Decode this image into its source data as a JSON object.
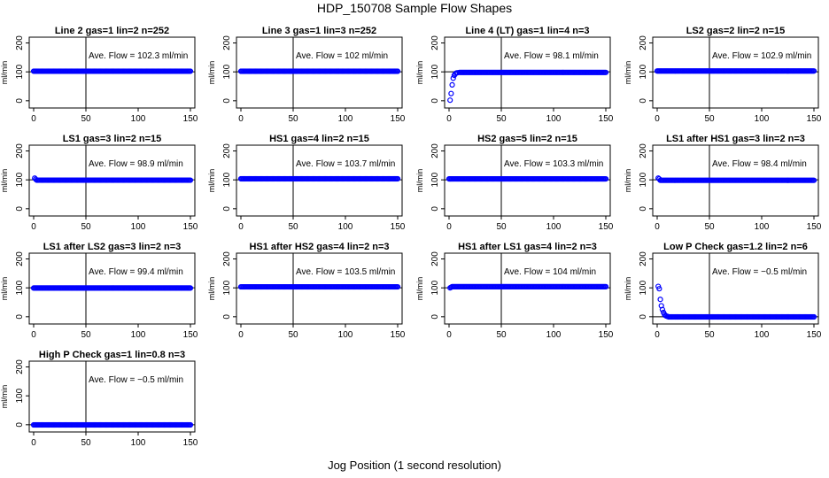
{
  "page": {
    "title": "HDP_150708  Sample Flow Shapes",
    "xlabel": "Jog Position (1 second resolution)"
  },
  "chart_data": [
    {
      "type": "scatter",
      "title": "Line 2 gas=1 lin=2 n=252",
      "annotation": "Ave. Flow = 102.3  ml/min",
      "ylabel": "ml/min",
      "xlim": [
        0,
        150
      ],
      "ylim": [
        -25,
        220
      ],
      "xticks": [
        0,
        50,
        100,
        150
      ],
      "yticks": [
        0,
        100,
        200
      ],
      "vline": 50,
      "hline": 100,
      "point_color": "#0000ff",
      "shape": "flat",
      "level": 102.3
    },
    {
      "type": "scatter",
      "title": "Line 3 gas=1 lin=3 n=252",
      "annotation": "Ave. Flow = 102  ml/min",
      "ylabel": "ml/min",
      "xlim": [
        0,
        150
      ],
      "ylim": [
        -25,
        220
      ],
      "xticks": [
        0,
        50,
        100,
        150
      ],
      "yticks": [
        0,
        100,
        200
      ],
      "vline": 50,
      "hline": 100,
      "point_color": "#0000ff",
      "shape": "flat",
      "level": 102
    },
    {
      "type": "scatter",
      "title": "Line 4 (LT) gas=1 lin=4 n=3",
      "annotation": "Ave. Flow = 98.1  ml/min",
      "ylabel": "ml/min",
      "xlim": [
        0,
        150
      ],
      "ylim": [
        -25,
        220
      ],
      "xticks": [
        0,
        50,
        100,
        150
      ],
      "yticks": [
        0,
        100,
        200
      ],
      "vline": 50,
      "hline": 100,
      "point_color": "#0000ff",
      "shape": "rise",
      "level": 98.1,
      "initial_points": [
        [
          1,
          2
        ],
        [
          2,
          25
        ],
        [
          3,
          55
        ],
        [
          4,
          78
        ],
        [
          5,
          88
        ],
        [
          6,
          93
        ],
        [
          7,
          96
        ],
        [
          8,
          97
        ],
        [
          10,
          98
        ]
      ]
    },
    {
      "type": "scatter",
      "title": "LS2 gas=2 lin=2 n=15",
      "annotation": "Ave. Flow = 102.9  ml/min",
      "ylabel": "ml/min",
      "xlim": [
        0,
        150
      ],
      "ylim": [
        -25,
        220
      ],
      "xticks": [
        0,
        50,
        100,
        150
      ],
      "yticks": [
        0,
        100,
        200
      ],
      "vline": 50,
      "hline": 100,
      "point_color": "#0000ff",
      "shape": "flat",
      "level": 102.9
    },
    {
      "type": "scatter",
      "title": "LS1 gas=3 lin=2 n=15",
      "annotation": "Ave. Flow = 98.9  ml/min",
      "ylabel": "ml/min",
      "xlim": [
        0,
        150
      ],
      "ylim": [
        -25,
        220
      ],
      "xticks": [
        0,
        50,
        100,
        150
      ],
      "yticks": [
        0,
        100,
        200
      ],
      "vline": 50,
      "hline": 100,
      "point_color": "#0000ff",
      "shape": "flat",
      "level": 98.9,
      "initial_points": [
        [
          1,
          106
        ],
        [
          2,
          102
        ]
      ]
    },
    {
      "type": "scatter",
      "title": "HS1 gas=4 lin=2 n=15",
      "annotation": "Ave. Flow = 103.7  ml/min",
      "ylabel": "ml/min",
      "xlim": [
        0,
        150
      ],
      "ylim": [
        -25,
        220
      ],
      "xticks": [
        0,
        50,
        100,
        150
      ],
      "yticks": [
        0,
        100,
        200
      ],
      "vline": 50,
      "hline": 100,
      "point_color": "#0000ff",
      "shape": "flat",
      "level": 103.7
    },
    {
      "type": "scatter",
      "title": "HS2 gas=5 lin=2 n=15",
      "annotation": "Ave. Flow = 103.3  ml/min",
      "ylabel": "ml/min",
      "xlim": [
        0,
        150
      ],
      "ylim": [
        -25,
        220
      ],
      "xticks": [
        0,
        50,
        100,
        150
      ],
      "yticks": [
        0,
        100,
        200
      ],
      "vline": 50,
      "hline": 100,
      "point_color": "#0000ff",
      "shape": "flat",
      "level": 103.3
    },
    {
      "type": "scatter",
      "title": "LS1 after HS1 gas=3 lin=2 n=3",
      "annotation": "Ave. Flow = 98.4  ml/min",
      "ylabel": "ml/min",
      "xlim": [
        0,
        150
      ],
      "ylim": [
        -25,
        220
      ],
      "xticks": [
        0,
        50,
        100,
        150
      ],
      "yticks": [
        0,
        100,
        200
      ],
      "vline": 50,
      "hline": 100,
      "point_color": "#0000ff",
      "shape": "flat",
      "level": 98.4,
      "initial_points": [
        [
          1,
          106
        ],
        [
          2,
          103
        ]
      ]
    },
    {
      "type": "scatter",
      "title": "LS1 after LS2 gas=3 lin=2 n=3",
      "annotation": "Ave. Flow = 99.4  ml/min",
      "ylabel": "ml/min",
      "xlim": [
        0,
        150
      ],
      "ylim": [
        -25,
        220
      ],
      "xticks": [
        0,
        50,
        100,
        150
      ],
      "yticks": [
        0,
        100,
        200
      ],
      "vline": 50,
      "hline": 100,
      "point_color": "#0000ff",
      "shape": "flat",
      "level": 99.4
    },
    {
      "type": "scatter",
      "title": "HS1 after HS2 gas=4 lin=2 n=3",
      "annotation": "Ave. Flow = 103.5  ml/min",
      "ylabel": "ml/min",
      "xlim": [
        0,
        150
      ],
      "ylim": [
        -25,
        220
      ],
      "xticks": [
        0,
        50,
        100,
        150
      ],
      "yticks": [
        0,
        100,
        200
      ],
      "vline": 50,
      "hline": 100,
      "point_color": "#0000ff",
      "shape": "flat",
      "level": 103.5
    },
    {
      "type": "scatter",
      "title": "HS1 after LS1 gas=4 lin=2 n=3",
      "annotation": "Ave. Flow = 104  ml/min",
      "ylabel": "ml/min",
      "xlim": [
        0,
        150
      ],
      "ylim": [
        -25,
        220
      ],
      "xticks": [
        0,
        50,
        100,
        150
      ],
      "yticks": [
        0,
        100,
        200
      ],
      "vline": 50,
      "hline": 100,
      "point_color": "#0000ff",
      "shape": "flat",
      "level": 104,
      "initial_points": [
        [
          1,
          100
        ],
        [
          2,
          102
        ]
      ]
    },
    {
      "type": "scatter",
      "title": "Low P Check gas=1.2 lin=2 n=6",
      "annotation": "Ave. Flow = −0.5  ml/min",
      "ylabel": "ml/min",
      "xlim": [
        0,
        150
      ],
      "ylim": [
        -25,
        220
      ],
      "xticks": [
        0,
        50,
        100,
        150
      ],
      "yticks": [
        0,
        100,
        200
      ],
      "vline": 50,
      "hline": 0,
      "point_color": "#0000ff",
      "shape": "decay",
      "level": -0.5,
      "initial_points": [
        [
          1,
          105
        ],
        [
          2,
          97
        ],
        [
          3,
          60
        ],
        [
          4,
          38
        ],
        [
          5,
          25
        ],
        [
          6,
          15
        ],
        [
          7,
          8
        ],
        [
          8,
          4
        ],
        [
          9,
          2
        ],
        [
          10,
          1
        ]
      ]
    },
    {
      "type": "scatter",
      "title": "High P Check gas=1 lin=0.8 n=3",
      "annotation": "Ave. Flow = −0.5  ml/min",
      "ylabel": "ml/min",
      "xlim": [
        0,
        150
      ],
      "ylim": [
        -25,
        220
      ],
      "xticks": [
        0,
        50,
        100,
        150
      ],
      "yticks": [
        0,
        100,
        200
      ],
      "vline": 50,
      "hline": 0,
      "point_color": "#0000ff",
      "shape": "flat",
      "level": -0.5
    }
  ]
}
